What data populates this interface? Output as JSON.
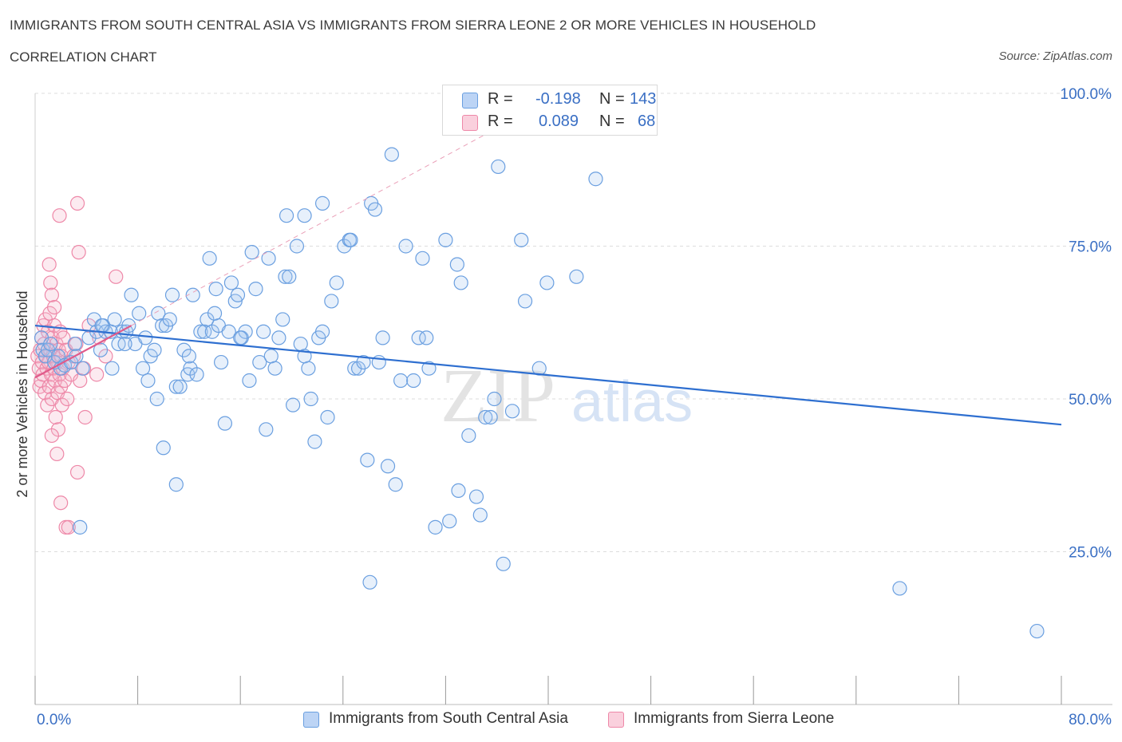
{
  "header": {
    "title": "IMMIGRANTS FROM SOUTH CENTRAL ASIA VS IMMIGRANTS FROM SIERRA LEONE 2 OR MORE VEHICLES IN HOUSEHOLD",
    "subtitle": "CORRELATION CHART",
    "source": "Source: ZipAtlas.com"
  },
  "legend": {
    "rows": [
      {
        "r_label": "R =",
        "r_value": "-0.198",
        "n_label": "N =",
        "n_value": "143",
        "color": "#a9c8f0"
      },
      {
        "r_label": "R =",
        "r_value": "0.089",
        "n_label": "N =",
        "n_value": "68",
        "color": "#f5b5c8"
      }
    ]
  },
  "bottom_legend": {
    "items": [
      {
        "label": "Immigrants from South Central Asia",
        "color": "#a9c8f0"
      },
      {
        "label": "Immigrants from Sierra Leone",
        "color": "#f5b5c8"
      }
    ]
  },
  "watermark": {
    "zip": "ZIP",
    "atlas": "atlas"
  },
  "chart_data": {
    "type": "scatter",
    "xlabel": "",
    "ylabel": "2 or more Vehicles in Household",
    "xlim": [
      0,
      80
    ],
    "ylim": [
      0,
      100
    ],
    "x_tick_labels": [
      "0.0%",
      "80.0%"
    ],
    "y_ticks": [
      25,
      50,
      75,
      100
    ],
    "y_tick_labels": [
      "25.0%",
      "50.0%",
      "75.0%",
      "100.0%"
    ],
    "grid": true,
    "colors": {
      "blue": "#6a9fe0",
      "blue_line": "#2e6fd0",
      "pink": "#ee88a8",
      "pink_line": "#e05a8a"
    },
    "series": [
      {
        "name": "Immigrants from South Central Asia",
        "trend": {
          "x": [
            0,
            80
          ],
          "y": [
            62,
            45.8
          ]
        },
        "points": [
          [
            0.5,
            60
          ],
          [
            0.6,
            58
          ],
          [
            0.8,
            57
          ],
          [
            1.0,
            58
          ],
          [
            1.2,
            59
          ],
          [
            1.5,
            56
          ],
          [
            1.8,
            57
          ],
          [
            2.0,
            55
          ],
          [
            2.3,
            55.5
          ],
          [
            2.8,
            56
          ],
          [
            3.1,
            59
          ],
          [
            3.2,
            57
          ],
          [
            3.7,
            55
          ],
          [
            4.2,
            60
          ],
          [
            4.6,
            63
          ],
          [
            4.8,
            61
          ],
          [
            5.1,
            58
          ],
          [
            5.3,
            62
          ],
          [
            5.5,
            61
          ],
          [
            5.9,
            61
          ],
          [
            6.2,
            63
          ],
          [
            6.5,
            59
          ],
          [
            6.8,
            61
          ],
          [
            7.1,
            61
          ],
          [
            7.3,
            62
          ],
          [
            7.5,
            67
          ],
          [
            7.8,
            59
          ],
          [
            8.1,
            64
          ],
          [
            8.4,
            55
          ],
          [
            8.6,
            60
          ],
          [
            8.8,
            53
          ],
          [
            9.0,
            57
          ],
          [
            9.3,
            58
          ],
          [
            9.6,
            64
          ],
          [
            9.9,
            62
          ],
          [
            10.2,
            62
          ],
          [
            10.5,
            63
          ],
          [
            10.7,
            67
          ],
          [
            11.0,
            52
          ],
          [
            11.3,
            52
          ],
          [
            11.6,
            58
          ],
          [
            11.9,
            54
          ],
          [
            12.1,
            55
          ],
          [
            12.3,
            67
          ],
          [
            12.6,
            54
          ],
          [
            12.9,
            61
          ],
          [
            13.2,
            61
          ],
          [
            13.4,
            63
          ],
          [
            13.6,
            73
          ],
          [
            13.8,
            61
          ],
          [
            14.1,
            68
          ],
          [
            14.3,
            62
          ],
          [
            14.5,
            56
          ],
          [
            14.8,
            46
          ],
          [
            15.1,
            61
          ],
          [
            15.3,
            69
          ],
          [
            15.6,
            66
          ],
          [
            15.8,
            67
          ],
          [
            16.1,
            60
          ],
          [
            16.4,
            61
          ],
          [
            16.7,
            53
          ],
          [
            16.9,
            74
          ],
          [
            17.2,
            68
          ],
          [
            17.5,
            56
          ],
          [
            17.8,
            61
          ],
          [
            18.0,
            45
          ],
          [
            18.4,
            57
          ],
          [
            18.7,
            55
          ],
          [
            19.0,
            60
          ],
          [
            19.3,
            63
          ],
          [
            19.5,
            70
          ],
          [
            19.8,
            70
          ],
          [
            20.1,
            49
          ],
          [
            20.4,
            75
          ],
          [
            20.7,
            59
          ],
          [
            21.0,
            57
          ],
          [
            21.3,
            55
          ],
          [
            21.5,
            50
          ],
          [
            21.8,
            43
          ],
          [
            22.1,
            60
          ],
          [
            22.4,
            61
          ],
          [
            22.8,
            47
          ],
          [
            23.1,
            66
          ],
          [
            23.5,
            69
          ],
          [
            24.1,
            75
          ],
          [
            24.5,
            76
          ],
          [
            24.9,
            55
          ],
          [
            25.2,
            55
          ],
          [
            25.6,
            56
          ],
          [
            25.9,
            40
          ],
          [
            26.2,
            82
          ],
          [
            26.5,
            81
          ],
          [
            26.8,
            56
          ],
          [
            27.1,
            60
          ],
          [
            27.5,
            39
          ],
          [
            27.8,
            90
          ],
          [
            28.1,
            36
          ],
          [
            28.5,
            53
          ],
          [
            28.9,
            75
          ],
          [
            29.5,
            53
          ],
          [
            29.9,
            60
          ],
          [
            30.2,
            73
          ],
          [
            30.7,
            55
          ],
          [
            31.2,
            29
          ],
          [
            32.0,
            76
          ],
          [
            32.9,
            72
          ],
          [
            33.2,
            69
          ],
          [
            33.8,
            44
          ],
          [
            34.4,
            34
          ],
          [
            34.7,
            31
          ],
          [
            35.1,
            47
          ],
          [
            35.5,
            47
          ],
          [
            35.8,
            50
          ],
          [
            36.1,
            88
          ],
          [
            36.5,
            23
          ],
          [
            37.2,
            48
          ],
          [
            37.9,
            76
          ],
          [
            38.2,
            66
          ],
          [
            39.3,
            55
          ],
          [
            39.9,
            69
          ],
          [
            42.2,
            70
          ],
          [
            43.7,
            86
          ],
          [
            67.4,
            19
          ],
          [
            78.1,
            12
          ],
          [
            3.5,
            29
          ],
          [
            5.2,
            62
          ],
          [
            6.0,
            55
          ],
          [
            7.0,
            59
          ],
          [
            9.5,
            50
          ],
          [
            10.0,
            42
          ],
          [
            11.0,
            36
          ],
          [
            12.0,
            57
          ],
          [
            14.0,
            64
          ],
          [
            16.0,
            60
          ],
          [
            18.2,
            73
          ],
          [
            19.6,
            80
          ],
          [
            21.0,
            80
          ],
          [
            22.4,
            82
          ],
          [
            24.6,
            76
          ],
          [
            26.1,
            20
          ],
          [
            30.5,
            60
          ],
          [
            32.3,
            30
          ],
          [
            33.0,
            35
          ]
        ]
      },
      {
        "name": "Immigrants from Sierra Leone",
        "trend": {
          "x": [
            0,
            7.5
          ],
          "y": [
            53.5,
            62
          ]
        },
        "points": [
          [
            0.2,
            57
          ],
          [
            0.3,
            55
          ],
          [
            0.35,
            52
          ],
          [
            0.4,
            58
          ],
          [
            0.45,
            53
          ],
          [
            0.5,
            60
          ],
          [
            0.55,
            56
          ],
          [
            0.6,
            54
          ],
          [
            0.65,
            62
          ],
          [
            0.7,
            59
          ],
          [
            0.75,
            51
          ],
          [
            0.8,
            63
          ],
          [
            0.85,
            57
          ],
          [
            0.9,
            55
          ],
          [
            0.95,
            49
          ],
          [
            1.0,
            61
          ],
          [
            1.05,
            56
          ],
          [
            1.1,
            52
          ],
          [
            1.15,
            64
          ],
          [
            1.2,
            58
          ],
          [
            1.25,
            54
          ],
          [
            1.3,
            50
          ],
          [
            1.35,
            60
          ],
          [
            1.4,
            57
          ],
          [
            1.45,
            55
          ],
          [
            1.5,
            62
          ],
          [
            1.55,
            53
          ],
          [
            1.6,
            47
          ],
          [
            1.65,
            59
          ],
          [
            1.7,
            56
          ],
          [
            1.75,
            51
          ],
          [
            1.8,
            45
          ],
          [
            1.85,
            58
          ],
          [
            1.9,
            54
          ],
          [
            1.95,
            61
          ],
          [
            2.0,
            52
          ],
          [
            2.05,
            57
          ],
          [
            2.1,
            49
          ],
          [
            2.15,
            55
          ],
          [
            2.2,
            60
          ],
          [
            2.3,
            53
          ],
          [
            2.4,
            58
          ],
          [
            2.5,
            50
          ],
          [
            2.6,
            56
          ],
          [
            2.8,
            54
          ],
          [
            3.0,
            57
          ],
          [
            3.2,
            59
          ],
          [
            3.5,
            53
          ],
          [
            3.8,
            55
          ],
          [
            4.2,
            62
          ],
          [
            4.8,
            54
          ],
          [
            5.0,
            60
          ],
          [
            5.5,
            57
          ],
          [
            1.1,
            72
          ],
          [
            1.2,
            69
          ],
          [
            1.3,
            67
          ],
          [
            1.5,
            65
          ],
          [
            1.9,
            80
          ],
          [
            3.3,
            82
          ],
          [
            3.4,
            74
          ],
          [
            6.3,
            70
          ],
          [
            1.3,
            44
          ],
          [
            1.7,
            41
          ],
          [
            2.0,
            33
          ],
          [
            2.4,
            29
          ],
          [
            2.6,
            29
          ],
          [
            3.3,
            38
          ],
          [
            3.9,
            47
          ]
        ]
      }
    ]
  }
}
